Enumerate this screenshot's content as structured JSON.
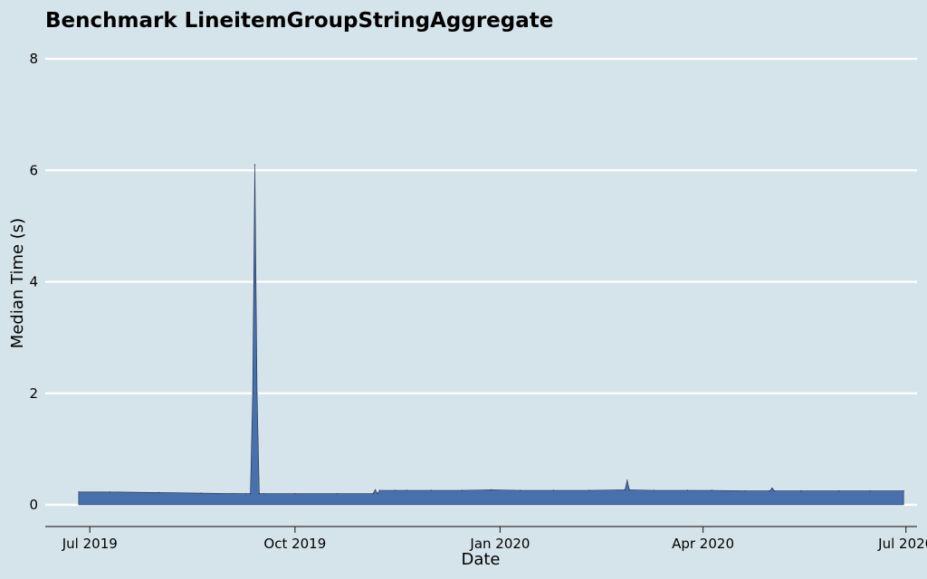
{
  "chart_data": {
    "type": "area",
    "title": "Benchmark LineitemGroupStringAggregate",
    "xlabel": "Date",
    "ylabel": "Median Time (s)",
    "ylim": [
      0,
      8
    ],
    "xlim": [
      "2019-06-11",
      "2020-07-06"
    ],
    "grid": "horizontal",
    "y_ticks": [
      "0",
      "2",
      "4",
      "6",
      "8"
    ],
    "x_ticks": [
      {
        "date": "2019-07-01",
        "label": "Jul 2019"
      },
      {
        "date": "2019-10-01",
        "label": "Oct 2019"
      },
      {
        "date": "2020-01-01",
        "label": "Jan 2020"
      },
      {
        "date": "2020-04-01",
        "label": "Apr 2020"
      },
      {
        "date": "2020-07-01",
        "label": "Jul 2020"
      }
    ],
    "colors": {
      "fill": "#4870ac",
      "edge": "#1f2a44",
      "background": "#d5e4eb",
      "grid": "#ffffff"
    },
    "series": [
      {
        "x": [
          "2019-06-26",
          "2019-07-10",
          "2019-08-01",
          "2019-08-20",
          "2019-09-09",
          "2019-09-11",
          "2019-09-12",
          "2019-09-13",
          "2019-09-14",
          "2019-09-15",
          "2019-09-17",
          "2019-10-01",
          "2019-10-20",
          "2019-11-05",
          "2019-11-06",
          "2019-11-07",
          "2019-11-08",
          "2019-11-15",
          "2019-11-20",
          "2019-12-01",
          "2019-12-15",
          "2019-12-28",
          "2020-01-10",
          "2020-01-25",
          "2020-02-10",
          "2020-02-26",
          "2020-02-27",
          "2020-02-28",
          "2020-03-10",
          "2020-03-25",
          "2020-04-05",
          "2020-04-20",
          "2020-05-01",
          "2020-05-02",
          "2020-05-03",
          "2020-05-15",
          "2020-06-01",
          "2020-06-15",
          "2020-06-30"
        ],
        "y": [
          0.23,
          0.23,
          0.22,
          0.21,
          0.2,
          0.2,
          2.0,
          6.1,
          2.0,
          0.2,
          0.2,
          0.2,
          0.2,
          0.2,
          0.27,
          0.2,
          0.26,
          0.26,
          0.26,
          0.26,
          0.26,
          0.27,
          0.26,
          0.26,
          0.26,
          0.27,
          0.44,
          0.27,
          0.26,
          0.26,
          0.26,
          0.25,
          0.25,
          0.3,
          0.25,
          0.25,
          0.25,
          0.25,
          0.25
        ]
      }
    ]
  }
}
